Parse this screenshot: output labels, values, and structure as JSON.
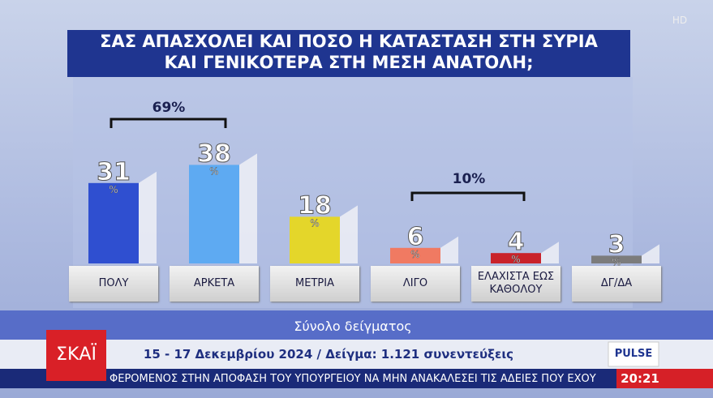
{
  "chart_data": {
    "type": "bar",
    "title": [
      "ΣΑΣ ΑΠΑΣΧΟΛΕΙ ΚΑΙ ΠΟΣΟ Η ΚΑΤΑΣΤΑΣΗ ΣΤΗ ΣΥΡΙΑ",
      "ΚΑΙ ΓΕΝΙΚΟΤΕΡΑ ΣΤΗ ΜΕΣΗ ΑΝΑΤΟΛΗ;"
    ],
    "categories": [
      "ΠΟΛΥ",
      "ΑΡΚΕΤΑ",
      "ΜΕΤΡΙΑ",
      "ΛΙΓΟ",
      "ΕΛΑΧΙΣΤΑ ΕΩΣ ΚΑΘΟΛΟΥ",
      "ΔΓ/ΔΑ"
    ],
    "values": [
      31,
      38,
      18,
      6,
      4,
      3
    ],
    "colors": [
      "#2f4fd0",
      "#5eaaf2",
      "#e4d62a",
      "#f07a62",
      "#c9222a",
      "#7c7c7c"
    ],
    "unit": "%",
    "annotations": [
      {
        "text": "69%"
      },
      {
        "text": "10%"
      }
    ]
  },
  "footer": {
    "subtitle": "Σύνολο δείγματος",
    "details": "15 - 17 Δεκεμβρίου  2024 / Δείγμα: 1.121 συνεντεύξεις",
    "ticker": "ΦΕΡΟΜΕΝΟΣ ΣΤΗΝ ΑΠΟΦΑΣΗ ΤΟΥ ΥΠΟΥΡΓΕΙΟΥ ΝΑ ΜΗΝ ΑΝΑΚΑΛΕΣΕΙ ΤΙΣ ΑΔΕΙΕΣ ΠΟΥ ΕΧΟΥ",
    "time": "20:21"
  },
  "logos": {
    "channel": "ΣΚΑΪ",
    "pollster": "PULSE",
    "badge": "HD"
  }
}
